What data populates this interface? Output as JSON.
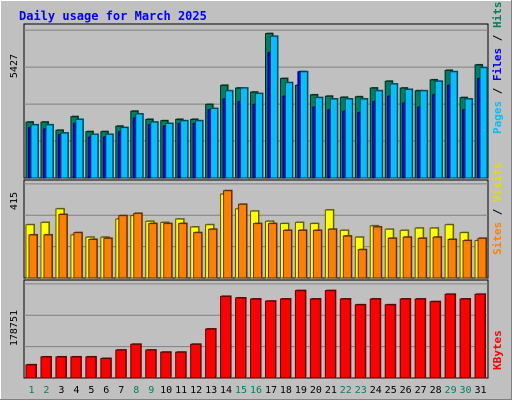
{
  "chart_data": {
    "type": "bar",
    "title": "Daily usage for March 2025",
    "categories": [
      "1",
      "2",
      "3",
      "4",
      "5",
      "6",
      "7",
      "8",
      "9",
      "10",
      "11",
      "12",
      "13",
      "14",
      "15",
      "16",
      "17",
      "18",
      "19",
      "20",
      "21",
      "22",
      "23",
      "24",
      "25",
      "26",
      "27",
      "28",
      "29",
      "30",
      "31"
    ],
    "weekend_days": [
      "1",
      "2",
      "8",
      "9",
      "15",
      "16",
      "22",
      "23",
      "29",
      "30"
    ],
    "panels": [
      {
        "id": "hits-files-pages",
        "ymax": 5427,
        "tick_label": "5427",
        "grid": true,
        "axis_label": [
          "Pages",
          "Files",
          "Hits"
        ],
        "series": [
          {
            "name": "Hits",
            "color": "#00805c",
            "values": [
              2050,
              2050,
              1750,
              2250,
              1700,
              1700,
              1900,
              2450,
              2150,
              2100,
              2150,
              2150,
              2700,
              3400,
              3300,
              3150,
              5300,
              3650,
              3400,
              3050,
              3000,
              2960,
              2980,
              3300,
              3550,
              3300,
              3200,
              3600,
              3950,
              2950,
              4150
            ]
          },
          {
            "name": "Files",
            "color": "#0000ff",
            "values": [
              1850,
              1800,
              1600,
              2000,
              1500,
              1500,
              1700,
              2200,
              1950,
              1900,
              2000,
              2000,
              2500,
              2900,
              2800,
              2700,
              4600,
              3000,
              3900,
              2600,
              2500,
              2450,
              2400,
              2800,
              3000,
              2750,
              2600,
              3050,
              3400,
              2500,
              3650
            ]
          },
          {
            "name": "Pages",
            "color": "#00c0ff",
            "values": [
              1950,
              1950,
              1650,
              2150,
              1600,
              1600,
              1850,
              2350,
              2050,
              2000,
              2100,
              2100,
              2550,
              3200,
              3300,
              3100,
              5200,
              3500,
              3900,
              2950,
              2900,
              2900,
              2900,
              3200,
              3450,
              3250,
              3200,
              3550,
              3900,
              2900,
              4050
            ]
          }
        ]
      },
      {
        "id": "visits-sites",
        "ymax": 415,
        "tick_label": "415",
        "grid": true,
        "axis_label": [
          "Sites",
          "Visits"
        ],
        "series": [
          {
            "name": "Visits",
            "color": "#ffff00",
            "values": [
              235,
              245,
              305,
              190,
              180,
              180,
              260,
              275,
              250,
              245,
              260,
              225,
              235,
              370,
              305,
              295,
              250,
              240,
              245,
              240,
              300,
              210,
              180,
              230,
              215,
              210,
              220,
              220,
              235,
              200,
              165
            ]
          },
          {
            "name": "Sites",
            "color": "#ff8000",
            "values": [
              190,
              190,
              280,
              200,
              170,
              175,
              275,
              285,
              240,
              240,
              240,
              200,
              215,
              385,
              325,
              240,
              240,
              210,
              210,
              210,
              215,
              185,
              125,
              225,
              175,
              180,
              175,
              180,
              170,
              165,
              175
            ]
          }
        ]
      },
      {
        "id": "kbytes",
        "ymax": 178751,
        "tick_label": "178751",
        "grid": true,
        "axis_label": [
          "KBytes"
        ],
        "series": [
          {
            "name": "KBytes",
            "color": "#ff0000",
            "values": [
              25000,
              40000,
              40000,
              40000,
              40000,
              37000,
              53000,
              64000,
              53000,
              49000,
              49000,
              64000,
              93000,
              155000,
              152000,
              150000,
              146000,
              150000,
              166000,
              150000,
              166000,
              150000,
              139000,
              150000,
              139000,
              150000,
              150000,
              145000,
              159000,
              150000,
              159000
            ]
          }
        ]
      }
    ]
  }
}
